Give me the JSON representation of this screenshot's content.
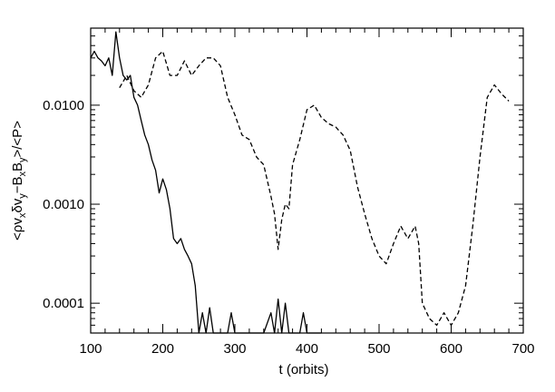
{
  "chart_data": {
    "type": "line",
    "title": "",
    "xlabel": "t (orbits)",
    "ylabel_parts": {
      "open": "<",
      "rho": "ρ",
      "v": "v",
      "x": "x",
      "delta": "δ",
      "v2": "v",
      "y": "y",
      "minus": "−B",
      "bx": "x",
      "b": "B",
      "by": "y",
      "close": ">/<P>"
    },
    "xlim": [
      100,
      700
    ],
    "ylim": [
      5e-05,
      0.06
    ],
    "yscale": "log",
    "grid": false,
    "legend": "none",
    "x_ticks": [
      100,
      200,
      300,
      400,
      500,
      600,
      700
    ],
    "x_tick_labels": [
      "100",
      "200",
      "300",
      "400",
      "500",
      "600",
      "700"
    ],
    "y_ticks": [
      0.0001,
      0.001,
      0.01
    ],
    "y_tick_labels": [
      "0.0001",
      "0.0010",
      "0.0100"
    ],
    "series": [
      {
        "style": "solid",
        "x": [
          100,
          105,
          110,
          115,
          120,
          125,
          130,
          135,
          140,
          145,
          150,
          155,
          160,
          165,
          170,
          175,
          180,
          185,
          190,
          195,
          200,
          205,
          210,
          215,
          220,
          225,
          230,
          235,
          240,
          245,
          250,
          255,
          260,
          265,
          270,
          280,
          290,
          295,
          300,
          310,
          320,
          330,
          340,
          350,
          355,
          360,
          365,
          370,
          375,
          380,
          390,
          395,
          400,
          410,
          420
        ],
        "y": [
          0.03,
          0.035,
          0.03,
          0.028,
          0.025,
          0.03,
          0.02,
          0.055,
          0.03,
          0.02,
          0.018,
          0.02,
          0.012,
          0.01,
          0.007,
          0.005,
          0.004,
          0.0028,
          0.0022,
          0.0013,
          0.0018,
          0.0014,
          0.0009,
          0.00045,
          0.0004,
          0.00045,
          0.00035,
          0.0003,
          0.00025,
          0.00015,
          5e-05,
          8e-05,
          5e-05,
          9e-05,
          5e-05,
          5e-05,
          5e-05,
          8e-05,
          5e-05,
          5e-05,
          5e-05,
          5e-05,
          5e-05,
          8e-05,
          5e-05,
          0.00011,
          5e-05,
          0.0001,
          5e-05,
          5e-05,
          5e-05,
          8e-05,
          5e-05,
          5e-05,
          5e-05
        ]
      },
      {
        "style": "dashed",
        "x": [
          140,
          150,
          160,
          170,
          180,
          190,
          200,
          210,
          220,
          230,
          240,
          250,
          260,
          270,
          280,
          290,
          300,
          310,
          320,
          330,
          340,
          350,
          355,
          360,
          365,
          370,
          375,
          380,
          390,
          400,
          410,
          420,
          430,
          440,
          450,
          460,
          470,
          480,
          490,
          500,
          510,
          520,
          530,
          540,
          550,
          555,
          560,
          570,
          580,
          590,
          600,
          610,
          620,
          630,
          640,
          650,
          660,
          670,
          680
        ],
        "y": [
          0.015,
          0.02,
          0.014,
          0.012,
          0.016,
          0.03,
          0.035,
          0.02,
          0.02,
          0.028,
          0.02,
          0.025,
          0.03,
          0.03,
          0.025,
          0.012,
          0.008,
          0.005,
          0.0045,
          0.003,
          0.0025,
          0.0012,
          0.0008,
          0.00035,
          0.0007,
          0.001,
          0.0009,
          0.0025,
          0.0045,
          0.009,
          0.01,
          0.0075,
          0.0065,
          0.006,
          0.005,
          0.0035,
          0.0015,
          0.0008,
          0.00045,
          0.0003,
          0.00025,
          0.0004,
          0.0006,
          0.00045,
          0.0006,
          0.0004,
          0.0001,
          7e-05,
          6e-05,
          8e-05,
          6e-05,
          8e-05,
          0.00015,
          0.0006,
          0.003,
          0.012,
          0.016,
          0.013,
          0.011
        ]
      }
    ]
  }
}
